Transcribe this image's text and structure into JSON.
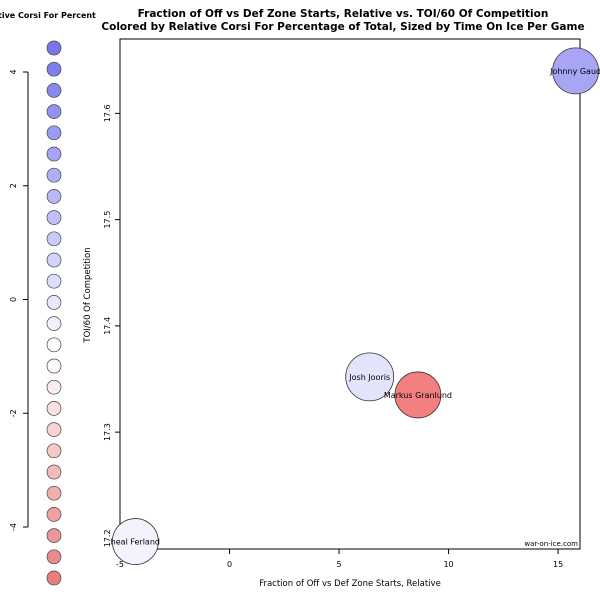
{
  "chart_data": {
    "type": "scatter",
    "title": "Fraction of Off vs Def Zone Starts, Relative vs. TOI/60 Of Competition",
    "subtitle": "Colored by Relative Corsi For Percentage of Total, Sized by Time On Ice Per Game",
    "xlabel": "Fraction of Off vs Def Zone Starts, Relative",
    "ylabel": "TOI/60 Of Competition",
    "xlim": [
      -5,
      16
    ],
    "ylim": [
      17.19,
      17.67
    ],
    "x_ticks": [
      -5,
      0,
      5,
      10,
      15
    ],
    "y_ticks": [
      17.2,
      17.3,
      17.4,
      17.5,
      17.6
    ],
    "grid": false,
    "watermark": "war-on-ice.com",
    "points": [
      {
        "label": "Johnny Gaud",
        "x": 15.8,
        "y": 17.64,
        "color": "#a6a6f5",
        "size": 23
      },
      {
        "label": "Josh Jooris",
        "x": 6.4,
        "y": 17.352,
        "color": "#e3e3fb",
        "size": 24
      },
      {
        "label": "Markus Granlund",
        "x": 8.6,
        "y": 17.335,
        "color": "#f28080",
        "size": 23
      },
      {
        "label": "heal Ferland",
        "x": -4.3,
        "y": 17.197,
        "color": "#f3f3fd",
        "size": 23
      }
    ],
    "legend": {
      "title": "tive Corsi For Percent",
      "ticks": [
        "4",
        "2",
        "0",
        "-2",
        "-4"
      ],
      "tick_values": [
        4,
        2,
        0,
        -2,
        -4
      ],
      "range": [
        -4.75,
        4.75
      ],
      "colors": [
        "#7676ee",
        "#7f7fef",
        "#8888f0",
        "#9292f1",
        "#9b9bf3",
        "#a5a5f4",
        "#aeaef5",
        "#b8b8f7",
        "#c1c1f8",
        "#cbcbf9",
        "#d4d4fb",
        "#dedefc",
        "#e8e8fd",
        "#f1f1fe",
        "#fbfbff",
        "#fef9f9",
        "#fbeded",
        "#f9e1e1",
        "#f7d4d4",
        "#f5c8c8",
        "#f3bcbc",
        "#f0b0b0",
        "#eea3a3",
        "#ec9797",
        "#ea8b8b",
        "#e87f7f"
      ]
    }
  }
}
